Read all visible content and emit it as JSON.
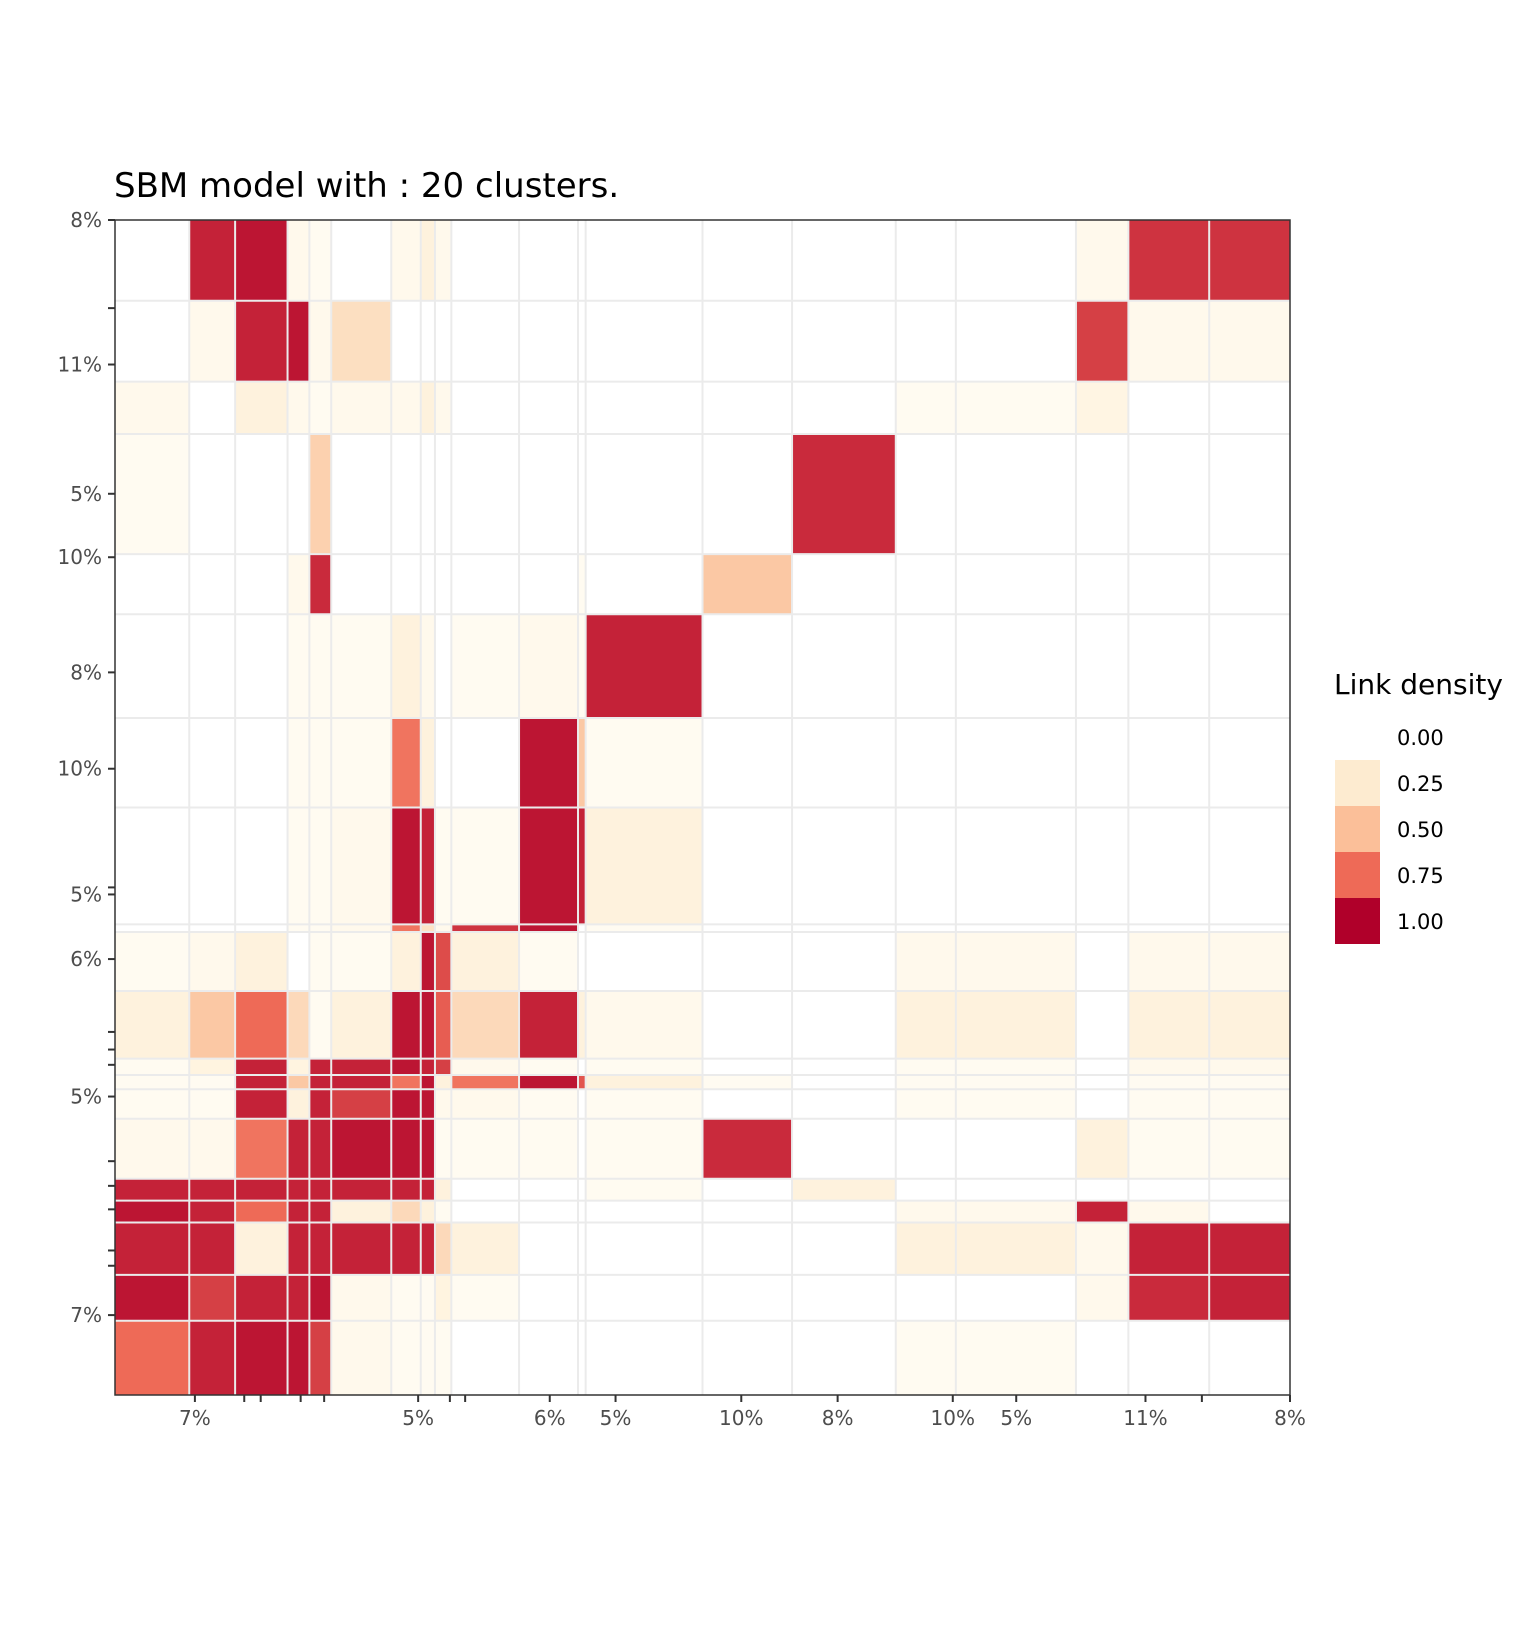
{
  "chart_data": {
    "type": "heatmap",
    "title": "SBM model with : 20 clusters.",
    "colors": {
      "low": "#fffaf0",
      "q25": "#fdebd0",
      "q50": "#fbbf99",
      "q75": "#ee6a57",
      "high": "#b0002a",
      "empty": "#ffffff",
      "grid": "#ebebeb",
      "axis": "#333333"
    },
    "cluster_size_pct": [
      6.8,
      4.2,
      4.8,
      2.0,
      2.0,
      5.5,
      2.7,
      1.3,
      1.5,
      6.2,
      5.4,
      0.7,
      10.7,
      8.2,
      9.5,
      5.5,
      11.0,
      4.8,
      7.4,
      7.4
    ],
    "x_tick_labels": [
      "7%",
      "",
      "",
      "",
      "",
      "5%",
      "",
      "",
      "6%",
      "5%",
      "10%",
      "8%",
      "10%",
      "5%",
      "11%",
      "",
      "8%"
    ],
    "x_tick_positions_pct": [
      6.8,
      11.0,
      12.4,
      15.8,
      17.8,
      25.8,
      28.5,
      29.8,
      37.0,
      42.6,
      53.3,
      61.5,
      71.3,
      76.7,
      87.7,
      92.5,
      100.0
    ],
    "y_tick_labels": [
      "7%",
      "",
      "",
      "",
      "",
      "",
      "5%",
      "",
      "",
      "",
      "6%",
      "5%",
      "",
      "10%",
      "8%",
      "10%",
      "5%",
      "11%",
      "",
      "8%"
    ],
    "y_tick_positions_pct": [
      6.8,
      11.0,
      12.3,
      15.8,
      17.8,
      19.9,
      25.4,
      28.1,
      29.4,
      30.9,
      37.1,
      42.6,
      43.2,
      53.3,
      61.5,
      71.3,
      76.7,
      87.7,
      92.5,
      100.0
    ],
    "z": [
      [
        0.75,
        0.92,
        0.95,
        0.95,
        0.85,
        0.05,
        0.02,
        0.02,
        0.02,
        0.0,
        0.0,
        0.0,
        0.0,
        0.0,
        0.0,
        0.02,
        0.02,
        0.0,
        0.0,
        0.0
      ],
      [
        0.95,
        0.85,
        0.92,
        0.92,
        0.95,
        0.05,
        0.02,
        0.02,
        0.12,
        0.02,
        0.0,
        0.0,
        0.0,
        0.0,
        0.0,
        0.0,
        0.0,
        0.05,
        0.9,
        0.92
      ],
      [
        0.92,
        0.92,
        0.15,
        0.92,
        0.92,
        0.92,
        0.92,
        0.92,
        0.35,
        0.15,
        0.0,
        0.0,
        0.0,
        0.0,
        0.0,
        0.15,
        0.15,
        0.05,
        0.92,
        0.92
      ],
      [
        0.95,
        0.92,
        0.75,
        0.92,
        0.92,
        0.15,
        0.35,
        0.15,
        0.02,
        0.0,
        0.0,
        0.0,
        0.0,
        0.0,
        0.0,
        0.05,
        0.05,
        0.92,
        0.05,
        0.0
      ],
      [
        0.92,
        0.92,
        0.92,
        0.92,
        0.92,
        0.92,
        0.92,
        0.92,
        0.15,
        0.0,
        0.0,
        0.0,
        0.02,
        0.0,
        0.15,
        0.0,
        0.0,
        0.0,
        0.0,
        0.0
      ],
      [
        0.05,
        0.05,
        0.72,
        0.92,
        0.92,
        0.95,
        0.95,
        0.95,
        0.02,
        0.02,
        0.02,
        0.0,
        0.02,
        0.9,
        0.0,
        0.0,
        0.0,
        0.15,
        0.02,
        0.02
      ],
      [
        0.02,
        0.02,
        0.92,
        0.15,
        0.92,
        0.85,
        0.95,
        0.95,
        0.05,
        0.05,
        0.02,
        0.0,
        0.02,
        0.0,
        0.0,
        0.02,
        0.02,
        0.0,
        0.02,
        0.02
      ],
      [
        0.02,
        0.02,
        0.92,
        0.45,
        0.92,
        0.92,
        0.72,
        0.95,
        0.15,
        0.72,
        0.95,
        0.8,
        0.15,
        0.02,
        0.0,
        0.02,
        0.02,
        0.0,
        0.02,
        0.02
      ],
      [
        0.02,
        0.12,
        0.92,
        0.12,
        0.92,
        0.92,
        0.95,
        0.92,
        0.85,
        0.05,
        0.02,
        0.0,
        0.02,
        0.0,
        0.0,
        0.02,
        0.02,
        0.0,
        0.05,
        0.05
      ],
      [
        0.15,
        0.45,
        0.75,
        0.35,
        0.02,
        0.15,
        0.95,
        0.95,
        0.78,
        0.35,
        0.92,
        0.15,
        0.05,
        0.0,
        0.0,
        0.15,
        0.15,
        0.0,
        0.15,
        0.15
      ],
      [
        0.02,
        0.05,
        0.15,
        0.0,
        0.02,
        0.02,
        0.15,
        0.95,
        0.82,
        0.15,
        0.02,
        0.0,
        0.0,
        0.0,
        0.0,
        0.05,
        0.05,
        0.0,
        0.05,
        0.05
      ],
      [
        0.0,
        0.0,
        0.0,
        0.02,
        0.02,
        0.05,
        0.72,
        0.3,
        0.05,
        0.88,
        0.95,
        0.0,
        0.02,
        0.0,
        0.0,
        0.0,
        0.0,
        0.0,
        0.0,
        0.0
      ],
      [
        0.0,
        0.0,
        0.0,
        0.02,
        0.02,
        0.05,
        0.95,
        0.92,
        0.02,
        0.02,
        0.95,
        0.92,
        0.15,
        0.0,
        0.0,
        0.0,
        0.0,
        0.0,
        0.0,
        0.0
      ],
      [
        0.0,
        0.0,
        0.0,
        0.02,
        0.02,
        0.02,
        0.72,
        0.15,
        0.0,
        0.0,
        0.95,
        0.45,
        0.02,
        0.0,
        0.0,
        0.0,
        0.0,
        0.0,
        0.0,
        0.0
      ],
      [
        0.0,
        0.0,
        0.0,
        0.02,
        0.02,
        0.02,
        0.15,
        0.05,
        0.0,
        0.02,
        0.05,
        0.02,
        0.92,
        0.0,
        0.0,
        0.0,
        0.0,
        0.0,
        0.0,
        0.0
      ],
      [
        0.0,
        0.0,
        0.0,
        0.05,
        0.9,
        0.0,
        0.0,
        0.0,
        0.0,
        0.0,
        0.0,
        0.02,
        0.0,
        0.45,
        0.0,
        0.0,
        0.0,
        0.0,
        0.0,
        0.0
      ],
      [
        0.02,
        0.0,
        0.0,
        0.0,
        0.4,
        0.0,
        0.0,
        0.0,
        0.0,
        0.0,
        0.0,
        0.0,
        0.0,
        0.0,
        0.9,
        0.0,
        0.0,
        0.0,
        0.0,
        0.0
      ],
      [
        0.05,
        0.0,
        0.15,
        0.05,
        0.02,
        0.05,
        0.05,
        0.15,
        0.05,
        0.0,
        0.0,
        0.0,
        0.0,
        0.0,
        0.0,
        0.02,
        0.02,
        0.1,
        0.0,
        0.0
      ],
      [
        0.0,
        0.05,
        0.92,
        0.95,
        0.05,
        0.32,
        0.0,
        0.0,
        0.0,
        0.0,
        0.0,
        0.0,
        0.0,
        0.0,
        0.0,
        0.0,
        0.0,
        0.85,
        0.05,
        0.05
      ],
      [
        0.0,
        0.92,
        0.95,
        0.05,
        0.02,
        0.0,
        0.05,
        0.15,
        0.05,
        0.0,
        0.0,
        0.0,
        0.0,
        0.0,
        0.0,
        0.0,
        0.0,
        0.05,
        0.88,
        0.88
      ]
    ],
    "legend": {
      "title": "Link density",
      "labels": [
        "0.00",
        "0.25",
        "0.50",
        "0.75",
        "1.00"
      ],
      "swatch_colors": [
        "#ffffff",
        "#fdebd0",
        "#fbbf99",
        "#ee6a57",
        "#b0002a"
      ]
    },
    "grid": true,
    "legend_position": "right"
  }
}
